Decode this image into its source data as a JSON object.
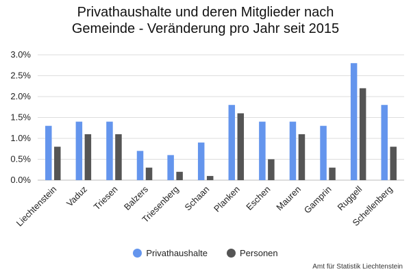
{
  "chart_data": {
    "type": "bar",
    "title_lines": [
      "Privathaushalte und deren Mitglieder nach",
      "Gemeinde - Veränderung pro Jahr seit 2015"
    ],
    "categories": [
      "Liechtenstein",
      "Vaduz",
      "Triesen",
      "Balzers",
      "Triesenberg",
      "Schaan",
      "Planken",
      "Eschen",
      "Mauren",
      "Gamprin",
      "Ruggell",
      "Schellenberg"
    ],
    "series": [
      {
        "name": "Privathaushalte",
        "color": "#6495ED",
        "values": [
          1.3,
          1.4,
          1.4,
          0.7,
          0.6,
          0.9,
          1.8,
          1.4,
          1.4,
          1.3,
          2.8,
          1.8
        ]
      },
      {
        "name": "Personen",
        "color": "#555555",
        "values": [
          0.8,
          1.1,
          1.1,
          0.3,
          0.2,
          0.1,
          1.6,
          0.5,
          1.1,
          0.3,
          2.2,
          0.8
        ]
      }
    ],
    "y_ticks": [
      "0.0%",
      "0.5%",
      "1.0%",
      "1.5%",
      "2.0%",
      "2.5%",
      "3.0%"
    ],
    "ylim": [
      0,
      3.0
    ],
    "y_unit": "%",
    "grid": true,
    "legend_position": "bottom"
  },
  "source_note": "Amt für Statistik Liechtenstein"
}
